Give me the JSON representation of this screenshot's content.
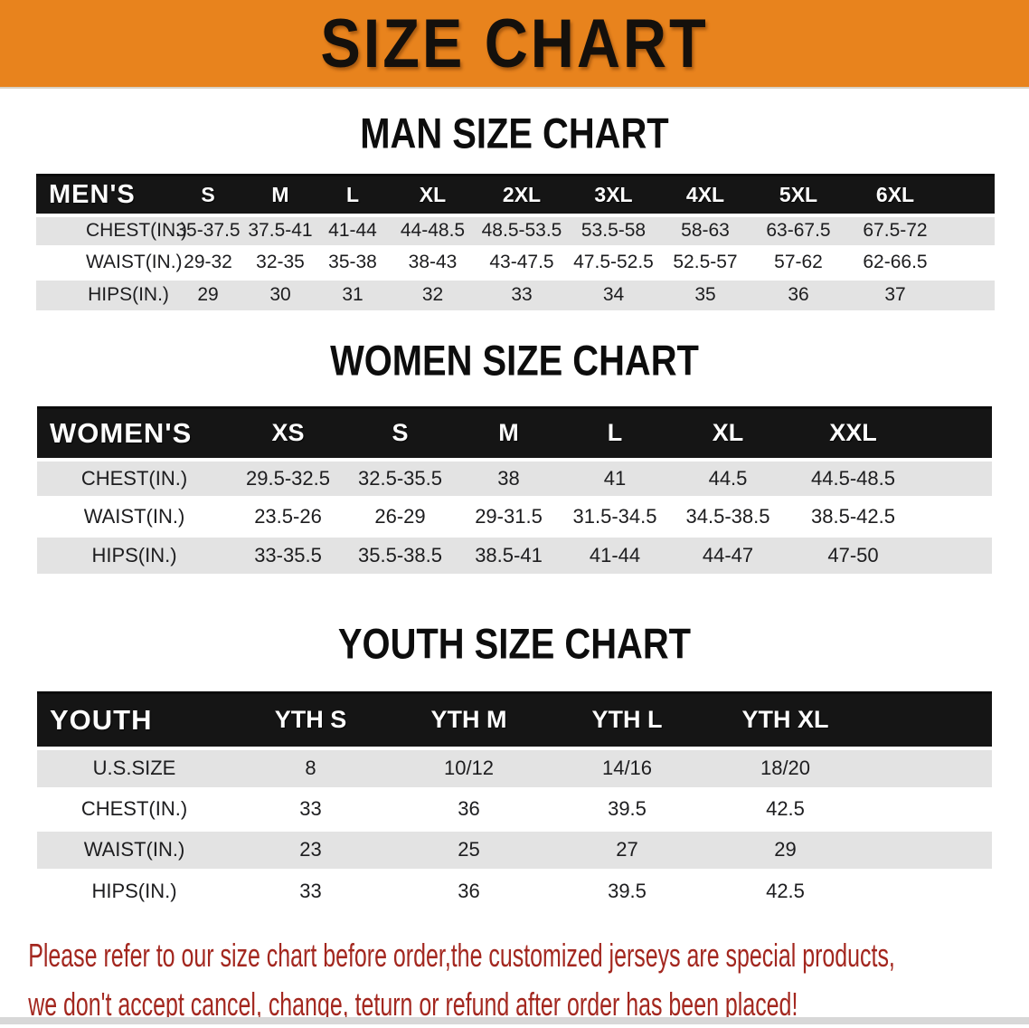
{
  "banner": {
    "title": "SIZE CHART"
  },
  "colors": {
    "banner-bg": "#e8831d",
    "header-bar": "#151515",
    "stripe": "#e3e3e3",
    "disclaimer": "#a3271f",
    "bottom-strip": "#d8d8d8"
  },
  "sections": [
    {
      "id": "men",
      "heading": "MAN SIZE CHART",
      "table": {
        "label": "MEN'S",
        "columns": [
          "S",
          "M",
          "L",
          "XL",
          "2XL",
          "3XL",
          "4XL",
          "5XL",
          "6XL"
        ],
        "rows": [
          {
            "label": "CHEST(IN.)",
            "values": [
              "35-37.5",
              "37.5-41",
              "41-44",
              "44-48.5",
              "48.5-53.5",
              "53.5-58",
              "58-63",
              "63-67.5",
              "67.5-72"
            ]
          },
          {
            "label": "WAIST(IN.)",
            "values": [
              "29-32",
              "32-35",
              "35-38",
              "38-43",
              "43-47.5",
              "47.5-52.5",
              "52.5-57",
              "57-62",
              "62-66.5"
            ]
          },
          {
            "label": "HIPS(IN.)",
            "values": [
              "29",
              "30",
              "31",
              "32",
              "33",
              "34",
              "35",
              "36",
              "37"
            ]
          }
        ]
      }
    },
    {
      "id": "women",
      "heading": "WOMEN SIZE CHART",
      "table": {
        "label": "WOMEN'S",
        "columns": [
          "XS",
          "S",
          "M",
          "L",
          "XL",
          "XXL"
        ],
        "rows": [
          {
            "label": "CHEST(IN.)",
            "values": [
              "29.5-32.5",
              "32.5-35.5",
              "38",
              "41",
              "44.5",
              "44.5-48.5"
            ]
          },
          {
            "label": "WAIST(IN.)",
            "values": [
              "23.5-26",
              "26-29",
              "29-31.5",
              "31.5-34.5",
              "34.5-38.5",
              "38.5-42.5"
            ]
          },
          {
            "label": "HIPS(IN.)",
            "values": [
              "33-35.5",
              "35.5-38.5",
              "38.5-41",
              "41-44",
              "44-47",
              "47-50"
            ]
          }
        ]
      }
    },
    {
      "id": "youth",
      "heading": "YOUTH SIZE CHART",
      "table": {
        "label": "YOUTH",
        "columns": [
          "YTH S",
          "YTH M",
          "YTH L",
          "YTH XL"
        ],
        "rows": [
          {
            "label": "U.S.SIZE",
            "values": [
              "8",
              "10/12",
              "14/16",
              "18/20"
            ]
          },
          {
            "label": "CHEST(IN.)",
            "values": [
              "33",
              "36",
              "39.5",
              "42.5"
            ]
          },
          {
            "label": "WAIST(IN.)",
            "values": [
              "23",
              "25",
              "27",
              "29"
            ]
          },
          {
            "label": "HIPS(IN.)",
            "values": [
              "33",
              "36",
              "39.5",
              "42.5"
            ]
          }
        ]
      }
    }
  ],
  "disclaimer": {
    "line1": "Please refer to our size chart before order,the customized jerseys are special products,",
    "line2": "we don't accept cancel, change, teturn or refund after order has been placed!"
  }
}
